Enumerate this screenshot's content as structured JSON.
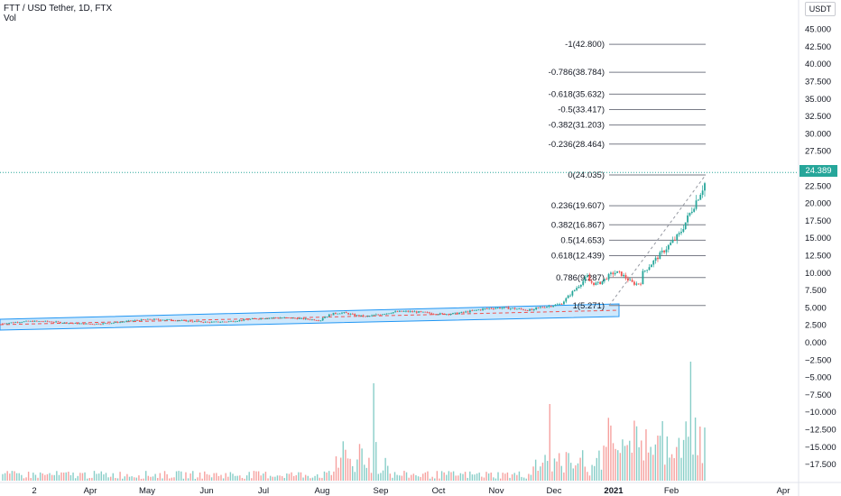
{
  "header": {
    "title": "FTT / USD Tether, 1D, FTX",
    "volume_label": "Vol"
  },
  "axis": {
    "unit_badge": "USDT",
    "current_price": "24.389"
  },
  "colors": {
    "up": "#26a69a",
    "down": "#ef5350",
    "channel": "#2196f3",
    "fib_line": "#787b86",
    "current_line": "#26a69a"
  },
  "chart_data": {
    "type": "candlestick",
    "title": "FTT / USD Tether, 1D, FTX",
    "ylim": [
      -19.5,
      47.5
    ],
    "y_ticks": [
      "45.000",
      "42.500",
      "40.000",
      "37.500",
      "35.000",
      "32.500",
      "30.000",
      "27.500",
      "25.000",
      "22.500",
      "20.000",
      "17.500",
      "15.000",
      "12.500",
      "10.000",
      "7.500",
      "5.000",
      "2.500",
      "0.000",
      "−2.500",
      "−5.000",
      "−7.500",
      "−10.000",
      "−12.500",
      "−15.000",
      "−17.500"
    ],
    "x_ticks": [
      "2",
      "Apr",
      "May",
      "Jun",
      "Jul",
      "Aug",
      "Sep",
      "Oct",
      "Nov",
      "Dec",
      "2021",
      "Feb",
      "Apr"
    ],
    "current_price": 24.389,
    "fibonacci_levels": [
      {
        "label": "-1(42.800)",
        "value": 42.8
      },
      {
        "label": "-0.786(38.784)",
        "value": 38.784
      },
      {
        "label": "-0.618(35.632)",
        "value": 35.632
      },
      {
        "label": "-0.5(33.417)",
        "value": 33.417
      },
      {
        "label": "-0.382(31.203)",
        "value": 31.203
      },
      {
        "label": "-0.236(28.464)",
        "value": 28.464
      },
      {
        "label": "0(24.035)",
        "value": 24.035
      },
      {
        "label": "0.236(19.607)",
        "value": 19.607
      },
      {
        "label": "0.382(16.867)",
        "value": 16.867
      },
      {
        "label": "0.5(14.653)",
        "value": 14.653
      },
      {
        "label": "0.618(12.439)",
        "value": 12.439
      },
      {
        "label": "0.786(9.287)",
        "value": 9.287
      },
      {
        "label": "1(5.271)",
        "value": 5.271
      }
    ],
    "series": [
      {
        "name": "Vol",
        "type": "volume"
      }
    ]
  }
}
